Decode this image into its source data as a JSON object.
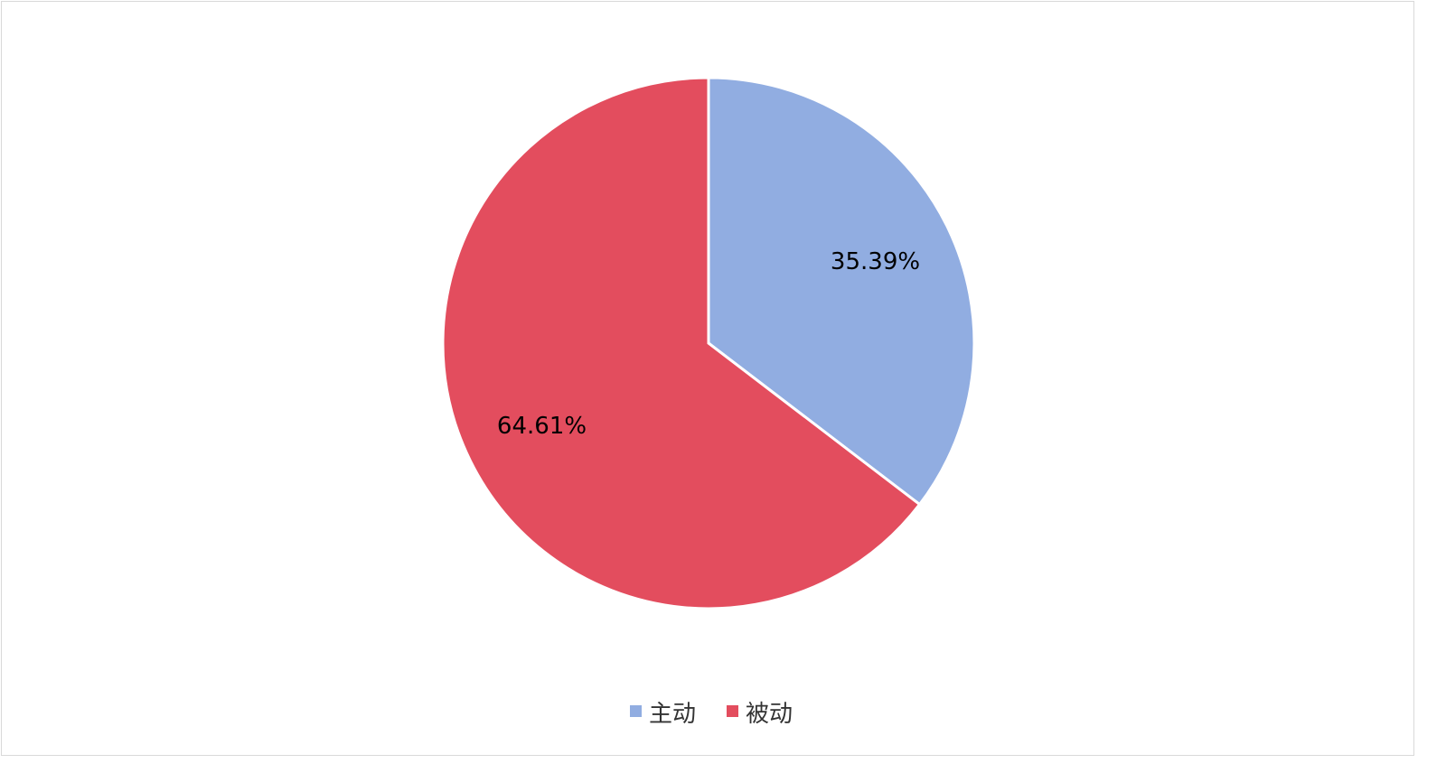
{
  "chart_data": {
    "type": "pie",
    "categories": [
      "主动",
      "被动"
    ],
    "values": [
      35.39,
      64.61
    ],
    "data_labels": [
      "35.39%",
      "64.61%"
    ],
    "colors": [
      "#91ADE1",
      "#E34D5E"
    ],
    "start_angle": "12 o'clock",
    "direction": "clockwise",
    "legend": {
      "position": "bottom",
      "entries": [
        "主动",
        "被动"
      ]
    }
  }
}
